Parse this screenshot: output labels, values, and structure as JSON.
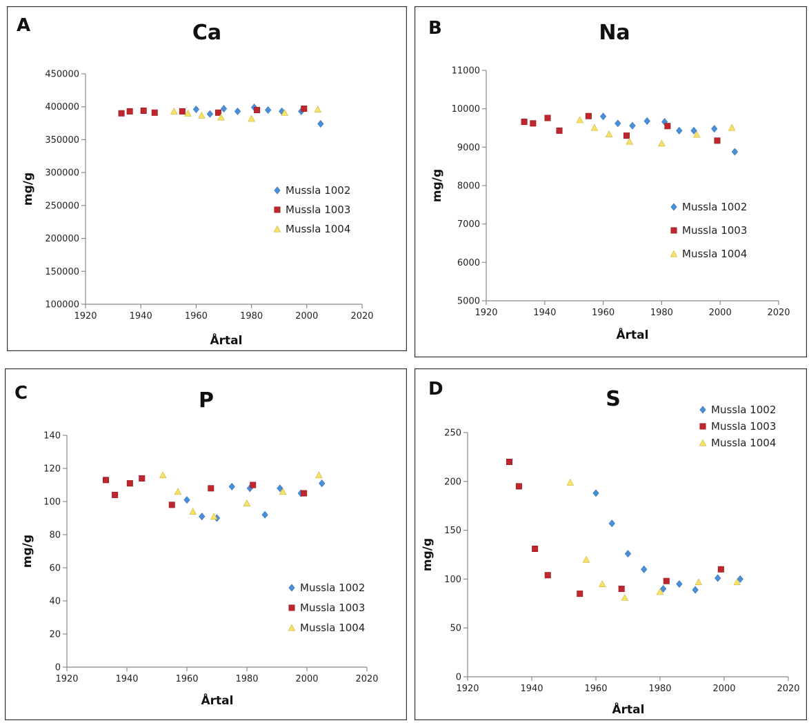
{
  "colors": {
    "Mussla 1002": "#4a90d9",
    "Mussla 1003": "#c0262d",
    "Mussla 1004": "#f5e266"
  },
  "markers": {
    "Mussla 1002": "diamond",
    "Mussla 1003": "square",
    "Mussla 1004": "triangle"
  },
  "chart_data": [
    {
      "type": "scatter",
      "letter": "A",
      "title": "Ca",
      "xlabel": "Årtal",
      "ylabel": "mg/g",
      "xlim": [
        1920,
        2020
      ],
      "ylim": [
        100000,
        450000
      ],
      "xticks": [
        1920,
        1940,
        1960,
        1980,
        2000,
        2020
      ],
      "yticks": [
        100000,
        150000,
        200000,
        250000,
        300000,
        350000,
        400000,
        450000
      ],
      "legend": "center-right",
      "series": [
        {
          "name": "Mussla 1002",
          "x": [
            1960,
            1965,
            1970,
            1975,
            1981,
            1986,
            1991,
            1998,
            2005
          ],
          "y": [
            396000,
            389000,
            397000,
            393000,
            399000,
            395000,
            393000,
            393000,
            374000
          ]
        },
        {
          "name": "Mussla 1003",
          "x": [
            1933,
            1936,
            1941,
            1945,
            1955,
            1968,
            1982,
            1999
          ],
          "y": [
            390000,
            393000,
            394000,
            391000,
            393000,
            391000,
            395000,
            397000
          ]
        },
        {
          "name": "Mussla 1004",
          "x": [
            1952,
            1957,
            1962,
            1969,
            1980,
            1992,
            2004
          ],
          "y": [
            393000,
            390000,
            387000,
            384000,
            382000,
            391000,
            396000
          ]
        }
      ]
    },
    {
      "type": "scatter",
      "letter": "B",
      "title": "Na",
      "xlabel": "Årtal",
      "ylabel": "mg/g",
      "xlim": [
        1920,
        2020
      ],
      "ylim": [
        5000,
        11000
      ],
      "xticks": [
        1920,
        1940,
        1960,
        1980,
        2000,
        2020
      ],
      "yticks": [
        5000,
        6000,
        7000,
        8000,
        9000,
        10000,
        11000
      ],
      "legend": "lower-right",
      "series": [
        {
          "name": "Mussla 1002",
          "x": [
            1960,
            1965,
            1970,
            1975,
            1981,
            1986,
            1991,
            1998,
            2005
          ],
          "y": [
            9800,
            9620,
            9560,
            9680,
            9660,
            9430,
            9430,
            9480,
            8880
          ]
        },
        {
          "name": "Mussla 1003",
          "x": [
            1933,
            1936,
            1941,
            1945,
            1955,
            1968,
            1982,
            1999
          ],
          "y": [
            9660,
            9620,
            9760,
            9430,
            9810,
            9300,
            9550,
            9170
          ]
        },
        {
          "name": "Mussla 1004",
          "x": [
            1952,
            1957,
            1962,
            1969,
            1980,
            1992,
            2004
          ],
          "y": [
            9710,
            9510,
            9340,
            9150,
            9100,
            9330,
            9510
          ]
        }
      ]
    },
    {
      "type": "scatter",
      "letter": "C",
      "title": "P",
      "xlabel": "Årtal",
      "ylabel": "mg/g",
      "xlim": [
        1920,
        2020
      ],
      "ylim": [
        0,
        140
      ],
      "xticks": [
        1920,
        1940,
        1960,
        1980,
        2000,
        2020
      ],
      "yticks": [
        0,
        20,
        40,
        60,
        80,
        100,
        120,
        140
      ],
      "legend": "lower-right",
      "series": [
        {
          "name": "Mussla 1002",
          "x": [
            1960,
            1965,
            1970,
            1975,
            1981,
            1986,
            1991,
            1998,
            2005
          ],
          "y": [
            101,
            91,
            90,
            109,
            108,
            92,
            108,
            105,
            111
          ]
        },
        {
          "name": "Mussla 1003",
          "x": [
            1933,
            1936,
            1941,
            1945,
            1955,
            1968,
            1982,
            1999
          ],
          "y": [
            113,
            104,
            111,
            114,
            98,
            108,
            110,
            105
          ]
        },
        {
          "name": "Mussla 1004",
          "x": [
            1952,
            1957,
            1962,
            1969,
            1980,
            1992,
            2004
          ],
          "y": [
            116,
            106,
            94,
            91,
            99,
            106,
            116
          ]
        }
      ]
    },
    {
      "type": "scatter",
      "letter": "D",
      "title": "S",
      "xlabel": "Årtal",
      "ylabel": "mg/g",
      "xlim": [
        1920,
        2020
      ],
      "ylim": [
        0,
        250
      ],
      "xticks": [
        1920,
        1940,
        1960,
        1980,
        2000,
        2020
      ],
      "yticks": [
        0,
        50,
        100,
        150,
        200,
        250
      ],
      "legend": "top-right",
      "series": [
        {
          "name": "Mussla 1002",
          "x": [
            1960,
            1965,
            1970,
            1975,
            1981,
            1986,
            1991,
            1998,
            2005
          ],
          "y": [
            188,
            157,
            126,
            110,
            90,
            95,
            89,
            101,
            100
          ]
        },
        {
          "name": "Mussla 1003",
          "x": [
            1933,
            1936,
            1941,
            1945,
            1955,
            1968,
            1982,
            1999
          ],
          "y": [
            220,
            195,
            131,
            104,
            85,
            90,
            98,
            110
          ]
        },
        {
          "name": "Mussla 1004",
          "x": [
            1952,
            1957,
            1962,
            1969,
            1980,
            1992,
            2004
          ],
          "y": [
            199,
            120,
            95,
            81,
            87,
            97,
            97
          ]
        }
      ]
    }
  ]
}
